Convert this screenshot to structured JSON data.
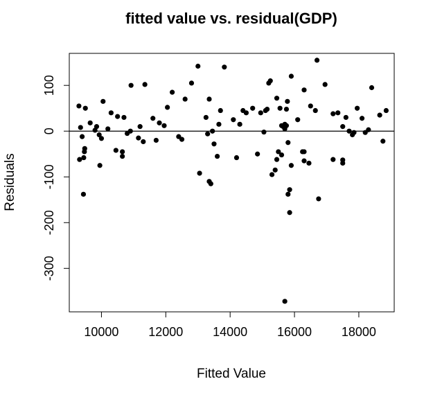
{
  "chart_data": {
    "type": "scatter",
    "title": "fitted value vs. residual(GDP)",
    "xlabel": "Fitted Value",
    "ylabel": "Residuals",
    "xlim": [
      9000,
      19100
    ],
    "ylim": [
      -395,
      170
    ],
    "x_ticks": [
      10000,
      12000,
      14000,
      16000,
      18000
    ],
    "x_tick_labels": [
      "10000",
      "12000",
      "14000",
      "16000",
      "18000"
    ],
    "y_ticks": [
      -300,
      -200,
      -100,
      0,
      100
    ],
    "y_tick_labels": [
      "-300",
      "-200",
      "-100",
      "0",
      "100"
    ],
    "reference_line": 0,
    "grid": false,
    "point_color": "#000000",
    "points": [
      {
        "x": 9300,
        "y": 55
      },
      {
        "x": 9350,
        "y": 8
      },
      {
        "x": 9320,
        "y": -62
      },
      {
        "x": 9400,
        "y": -12
      },
      {
        "x": 9450,
        "y": -58
      },
      {
        "x": 9470,
        "y": -45
      },
      {
        "x": 9480,
        "y": -38
      },
      {
        "x": 9500,
        "y": 50
      },
      {
        "x": 9440,
        "y": -138
      },
      {
        "x": 9650,
        "y": 18
      },
      {
        "x": 9800,
        "y": 2
      },
      {
        "x": 9850,
        "y": 10
      },
      {
        "x": 9930,
        "y": -8
      },
      {
        "x": 9950,
        "y": -75
      },
      {
        "x": 10000,
        "y": -16
      },
      {
        "x": 10050,
        "y": 65
      },
      {
        "x": 10200,
        "y": 5
      },
      {
        "x": 10300,
        "y": 40
      },
      {
        "x": 10450,
        "y": -42
      },
      {
        "x": 10500,
        "y": 32
      },
      {
        "x": 10650,
        "y": -55
      },
      {
        "x": 10650,
        "y": -45
      },
      {
        "x": 10700,
        "y": 30
      },
      {
        "x": 10800,
        "y": -5
      },
      {
        "x": 10900,
        "y": 0
      },
      {
        "x": 10920,
        "y": 100
      },
      {
        "x": 11150,
        "y": -15
      },
      {
        "x": 11200,
        "y": 10
      },
      {
        "x": 11300,
        "y": -23
      },
      {
        "x": 11350,
        "y": 102
      },
      {
        "x": 11600,
        "y": 28
      },
      {
        "x": 11700,
        "y": -20
      },
      {
        "x": 11800,
        "y": 18
      },
      {
        "x": 11950,
        "y": 12
      },
      {
        "x": 12050,
        "y": 52
      },
      {
        "x": 12200,
        "y": 85
      },
      {
        "x": 12400,
        "y": -12
      },
      {
        "x": 12500,
        "y": -18
      },
      {
        "x": 12600,
        "y": 70
      },
      {
        "x": 12800,
        "y": 105
      },
      {
        "x": 13000,
        "y": 142
      },
      {
        "x": 13050,
        "y": -92
      },
      {
        "x": 13250,
        "y": 30
      },
      {
        "x": 13300,
        "y": -6
      },
      {
        "x": 13350,
        "y": 70
      },
      {
        "x": 13350,
        "y": -110
      },
      {
        "x": 13400,
        "y": -115
      },
      {
        "x": 13450,
        "y": 0
      },
      {
        "x": 13500,
        "y": -28
      },
      {
        "x": 13600,
        "y": -55
      },
      {
        "x": 13650,
        "y": 15
      },
      {
        "x": 13700,
        "y": 45
      },
      {
        "x": 13820,
        "y": 140
      },
      {
        "x": 14100,
        "y": 25
      },
      {
        "x": 14200,
        "y": -58
      },
      {
        "x": 14300,
        "y": 15
      },
      {
        "x": 14400,
        "y": 45
      },
      {
        "x": 14500,
        "y": 40
      },
      {
        "x": 14700,
        "y": 50
      },
      {
        "x": 14850,
        "y": -50
      },
      {
        "x": 14950,
        "y": 40
      },
      {
        "x": 15050,
        "y": -2
      },
      {
        "x": 15100,
        "y": 45
      },
      {
        "x": 15150,
        "y": 48
      },
      {
        "x": 15200,
        "y": 105
      },
      {
        "x": 15250,
        "y": 110
      },
      {
        "x": 15300,
        "y": -95
      },
      {
        "x": 15400,
        "y": -85
      },
      {
        "x": 15450,
        "y": 72
      },
      {
        "x": 15450,
        "y": -62
      },
      {
        "x": 15500,
        "y": -45
      },
      {
        "x": 15550,
        "y": 50
      },
      {
        "x": 15600,
        "y": 12
      },
      {
        "x": 15600,
        "y": -52
      },
      {
        "x": 15650,
        "y": 10
      },
      {
        "x": 15700,
        "y": 15
      },
      {
        "x": 15700,
        "y": 5
      },
      {
        "x": 15700,
        "y": -372
      },
      {
        "x": 15750,
        "y": 48
      },
      {
        "x": 15750,
        "y": 12
      },
      {
        "x": 15780,
        "y": 65
      },
      {
        "x": 15800,
        "y": -25
      },
      {
        "x": 15800,
        "y": -138
      },
      {
        "x": 15850,
        "y": -128
      },
      {
        "x": 15900,
        "y": 120
      },
      {
        "x": 15900,
        "y": -75
      },
      {
        "x": 15850,
        "y": -178
      },
      {
        "x": 16100,
        "y": 25
      },
      {
        "x": 16250,
        "y": -45
      },
      {
        "x": 16300,
        "y": 90
      },
      {
        "x": 16300,
        "y": -45
      },
      {
        "x": 16300,
        "y": -65
      },
      {
        "x": 16450,
        "y": -70
      },
      {
        "x": 16500,
        "y": 55
      },
      {
        "x": 16650,
        "y": 45
      },
      {
        "x": 16700,
        "y": 155
      },
      {
        "x": 16750,
        "y": -148
      },
      {
        "x": 16950,
        "y": 102
      },
      {
        "x": 17200,
        "y": 38
      },
      {
        "x": 17200,
        "y": -62
      },
      {
        "x": 17350,
        "y": 40
      },
      {
        "x": 17500,
        "y": -63
      },
      {
        "x": 17500,
        "y": -70
      },
      {
        "x": 17500,
        "y": 10
      },
      {
        "x": 17600,
        "y": 30
      },
      {
        "x": 17700,
        "y": 0
      },
      {
        "x": 17800,
        "y": -8
      },
      {
        "x": 17850,
        "y": -3
      },
      {
        "x": 17950,
        "y": 50
      },
      {
        "x": 18100,
        "y": 28
      },
      {
        "x": 18200,
        "y": -3
      },
      {
        "x": 18300,
        "y": 3
      },
      {
        "x": 18400,
        "y": 95
      },
      {
        "x": 18650,
        "y": 35
      },
      {
        "x": 18750,
        "y": -22
      },
      {
        "x": 18850,
        "y": 45
      }
    ]
  }
}
